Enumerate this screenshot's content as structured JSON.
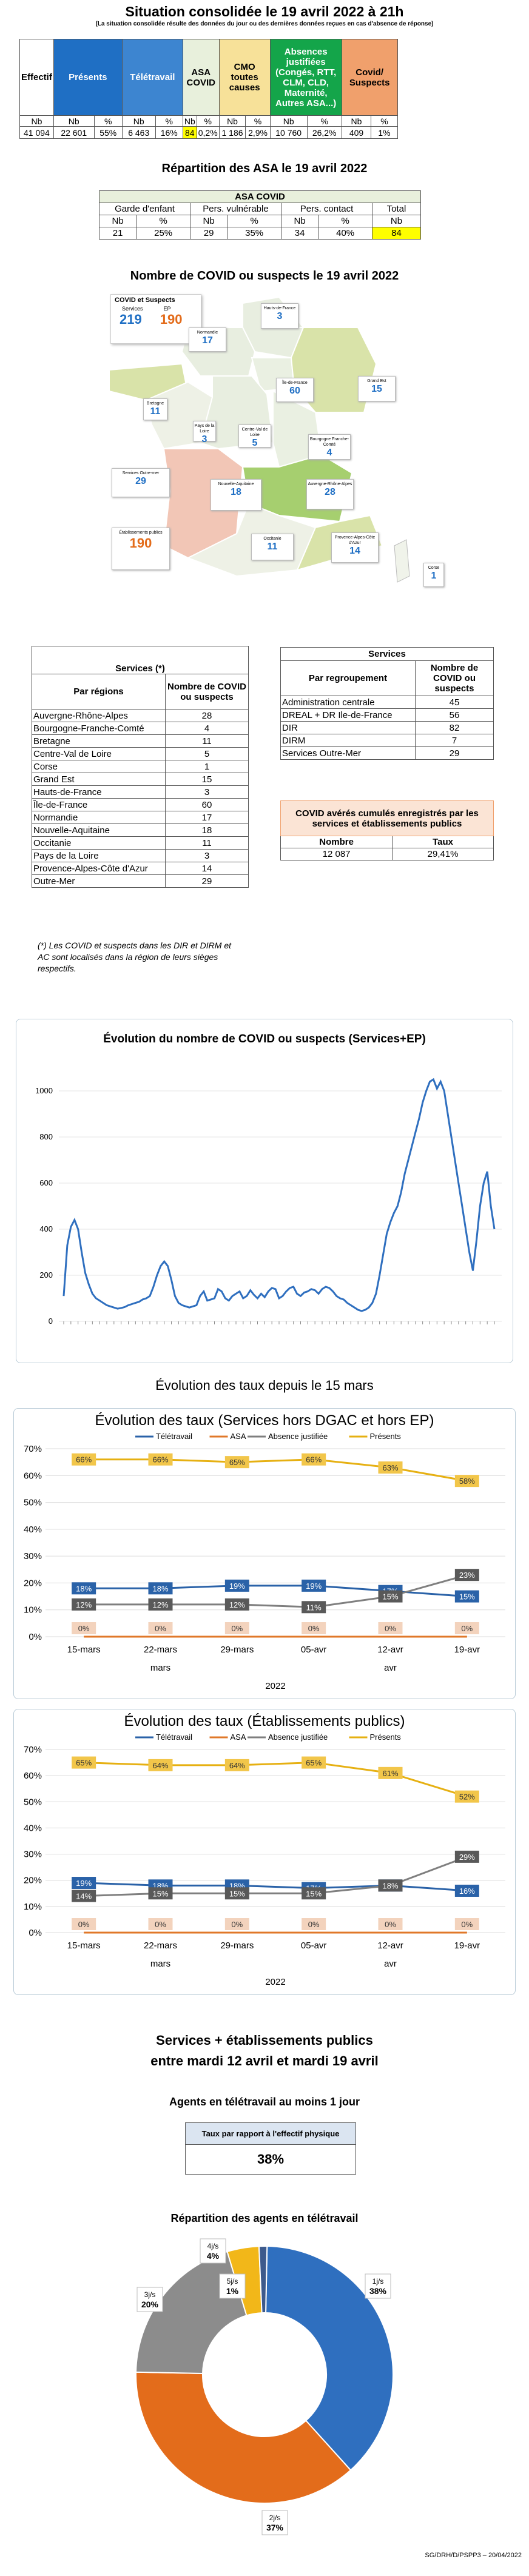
{
  "header": {
    "title": "Situation consolidée le 19 avril 2022 à 21h",
    "subtitle": "(La situation consolidée résulte des données du jour ou des dernières données reçues en cas d'absence de réponse)"
  },
  "situation": {
    "columns": [
      {
        "label": "Effectif",
        "color": "#ffffff",
        "text_color": "#000000",
        "sub": [
          "Nb"
        ],
        "vals": [
          "41 094"
        ]
      },
      {
        "label": "Présents",
        "color": "#1f6fc4",
        "text_color": "#ffffff",
        "sub": [
          "Nb",
          "%"
        ],
        "vals": [
          "22 601",
          "55%"
        ]
      },
      {
        "label": "Télétravail",
        "color": "#3d85d0",
        "text_color": "#ffffff",
        "sub": [
          "Nb",
          "%"
        ],
        "vals": [
          "6 463",
          "16%"
        ]
      },
      {
        "label": "ASA COVID",
        "color": "#e8f0dc",
        "text_color": "#000000",
        "sub": [
          "Nb",
          "%"
        ],
        "vals": [
          "84",
          "0,2%"
        ]
      },
      {
        "label": "CMO toutes causes",
        "color": "#f7e199",
        "text_color": "#000000",
        "sub": [
          "Nb",
          "%"
        ],
        "vals": [
          "1 186",
          "2,9%"
        ]
      },
      {
        "label": "Absences justifiées (Congés, RTT, CLM, CLD, Maternité, Autres ASA...)",
        "color": "#14a54a",
        "text_color": "#ffffff",
        "sub": [
          "Nb",
          "%"
        ],
        "vals": [
          "10 760",
          "26,2%"
        ]
      },
      {
        "label": "Covid/ Suspects",
        "color": "#f0a06c",
        "text_color": "#000000",
        "sub": [
          "Nb",
          "%"
        ],
        "vals": [
          "409",
          "1%"
        ]
      }
    ],
    "highlight_color": "#ffff00"
  },
  "asa": {
    "title": "Répartition des ASA le 19 avril 2022",
    "table_title": "ASA COVID",
    "groups": [
      "Garde d'enfant",
      "Pers. vulnérable",
      "Pers. contact",
      "Total"
    ],
    "sub": [
      "Nb",
      "%",
      "Nb",
      "%",
      "Nb",
      "%",
      "Nb"
    ],
    "vals": [
      "21",
      "25%",
      "29",
      "35%",
      "34",
      "40%",
      "84"
    ]
  },
  "map": {
    "title": "Nombre de COVID ou suspects le 19 avril 2022",
    "legend": {
      "title": "COVID et Suspects",
      "col1": "Services",
      "col2": "EP",
      "v1": "219",
      "v2": "190"
    },
    "regions": [
      {
        "name": "Hauts-de-France",
        "value": "3"
      },
      {
        "name": "Normandie",
        "value": "17"
      },
      {
        "name": "Île-de-France",
        "value": "60"
      },
      {
        "name": "Grand Est",
        "value": "15"
      },
      {
        "name": "Bretagne",
        "value": "11"
      },
      {
        "name": "Pays de la Loire",
        "value": "3"
      },
      {
        "name": "Centre-Val de Loire",
        "value": "5"
      },
      {
        "name": "Bourgogne Franche-Comté",
        "value": "4"
      },
      {
        "name": "Nouvelle-Aquitaine",
        "value": "18"
      },
      {
        "name": "Auvergne-Rhône-Alpes",
        "value": "28"
      },
      {
        "name": "Occitanie",
        "value": "11"
      },
      {
        "name": "Provence-Alpes-Côte d'Azur",
        "value": "14"
      },
      {
        "name": "Corse",
        "value": "1"
      },
      {
        "name": "Services Outre-mer",
        "value": "29"
      },
      {
        "name": "Établissements publics",
        "value": "190"
      }
    ]
  },
  "services_regions": {
    "title": "Services (*)",
    "col1": "Par régions",
    "col2": "Nombre de COVID ou suspects",
    "rows": [
      [
        "Auvergne-Rhône-Alpes",
        "28"
      ],
      [
        "Bourgogne-Franche-Comté",
        "4"
      ],
      [
        "Bretagne",
        "11"
      ],
      [
        "Centre-Val de Loire",
        "5"
      ],
      [
        "Corse",
        "1"
      ],
      [
        "Grand Est",
        "15"
      ],
      [
        "Hauts-de-France",
        "3"
      ],
      [
        "Île-de-France",
        "60"
      ],
      [
        "Normandie",
        "17"
      ],
      [
        "Nouvelle-Aquitaine",
        "18"
      ],
      [
        "Occitanie",
        "11"
      ],
      [
        "Pays de la Loire",
        "3"
      ],
      [
        "Provence-Alpes-Côte d'Azur",
        "14"
      ],
      [
        "Outre-Mer",
        "29"
      ]
    ],
    "note": "(*) Les COVID et suspects dans les DIR et DIRM et AC sont localisés dans la région de leurs sièges respectifs."
  },
  "services_groupement": {
    "title": "Services",
    "col1": "Par regroupement",
    "col2": "Nombre de COVID ou suspects",
    "rows": [
      [
        "Administration centrale",
        "45"
      ],
      [
        "DREAL + DR Ile-de-France",
        "56"
      ],
      [
        "DIR",
        "82"
      ],
      [
        "DIRM",
        "7"
      ],
      [
        "Services Outre-Mer",
        "29"
      ]
    ]
  },
  "cumul": {
    "title": "COVID avérés cumulés enregistrés par les services et établissements publics",
    "col1": "Nombre",
    "col2": "Taux",
    "v1": "12 087",
    "v2": "29,41%"
  },
  "evolution_chart": {
    "title": "Évolution du nombre de COVID ou suspects (Services+EP)",
    "yticks": [
      "0",
      "200",
      "400",
      "600",
      "800",
      "1000"
    ]
  },
  "section_taux": {
    "title": "Évolution des taux depuis le 15 mars"
  },
  "chart_data": [
    {
      "type": "line",
      "title": "Évolution du nombre de COVID ou suspects (Services+EP)",
      "ylim": [
        0,
        1100
      ],
      "values": [
        110,
        330,
        410,
        440,
        400,
        300,
        210,
        160,
        120,
        100,
        90,
        80,
        70,
        65,
        60,
        55,
        58,
        62,
        70,
        75,
        80,
        85,
        95,
        100,
        110,
        150,
        200,
        240,
        260,
        240,
        180,
        110,
        80,
        70,
        65,
        60,
        65,
        70,
        110,
        130,
        90,
        95,
        100,
        140,
        130,
        100,
        90,
        110,
        120,
        130,
        100,
        110,
        135,
        115,
        100,
        120,
        105,
        130,
        145,
        140,
        100,
        110,
        130,
        145,
        150,
        120,
        110,
        125,
        130,
        140,
        135,
        120,
        140,
        150,
        145,
        130,
        110,
        100,
        95,
        80,
        70,
        60,
        50,
        45,
        50,
        60,
        80,
        120,
        200,
        290,
        380,
        430,
        470,
        500,
        560,
        640,
        700,
        760,
        820,
        880,
        950,
        1000,
        1040,
        1050,
        1010,
        1040,
        1000,
        900,
        800,
        700,
        600,
        500,
        400,
        300,
        220,
        350,
        500,
        600,
        650,
        500,
        400
      ]
    },
    {
      "type": "line",
      "title": "Évolution des taux (Services hors DGAC et hors EP)",
      "categories": [
        "15-mars",
        "22-mars",
        "29-mars",
        "05-avr",
        "12-avr",
        "19-avr"
      ],
      "xgroups": [
        "mars",
        "avr"
      ],
      "xyear": "2022",
      "ylim": [
        0,
        70
      ],
      "series": [
        {
          "name": "Télétravail",
          "color": "#2a62a8",
          "values": [
            18,
            18,
            19,
            19,
            17,
            15
          ],
          "labels": [
            "18%",
            "18%",
            "19%",
            "19%",
            "17%",
            "15%"
          ]
        },
        {
          "name": "ASA",
          "color": "#e0782a",
          "values": [
            0,
            0,
            0,
            0,
            0,
            0
          ],
          "labels": [
            "0%",
            "0%",
            "0%",
            "0%",
            "0%",
            "0%"
          ]
        },
        {
          "name": "Absence justifiée",
          "color": "#7f7f7f",
          "values": [
            12,
            12,
            12,
            11,
            15,
            23
          ],
          "labels": [
            "12%",
            "12%",
            "12%",
            "11%",
            "15%",
            "23%"
          ]
        },
        {
          "name": "Présents",
          "color": "#e6b012",
          "values": [
            66,
            66,
            65,
            66,
            63,
            58
          ],
          "labels": [
            "66%",
            "66%",
            "65%",
            "66%",
            "63%",
            "58%"
          ]
        }
      ]
    },
    {
      "type": "line",
      "title": "Évolution des taux (Établissements publics)",
      "categories": [
        "15-mars",
        "22-mars",
        "29-mars",
        "05-avr",
        "12-avr",
        "19-avr"
      ],
      "xgroups": [
        "mars",
        "avr"
      ],
      "xyear": "2022",
      "ylim": [
        0,
        70
      ],
      "series": [
        {
          "name": "Télétravail",
          "color": "#2a62a8",
          "values": [
            19,
            18,
            18,
            17,
            18,
            16
          ],
          "labels": [
            "19%",
            "18%",
            "18%",
            "17%",
            "18%",
            "16%"
          ]
        },
        {
          "name": "ASA",
          "color": "#e0782a",
          "values": [
            0,
            0,
            0,
            0,
            0,
            0
          ],
          "labels": [
            "0%",
            "0%",
            "0%",
            "0%",
            "0%",
            "0%"
          ]
        },
        {
          "name": "Absence justifiée",
          "color": "#7f7f7f",
          "values": [
            14,
            15,
            15,
            15,
            18,
            29
          ],
          "labels": [
            "14%",
            "15%",
            "15%",
            "15%",
            "18%",
            "29%"
          ]
        },
        {
          "name": "Présents",
          "color": "#e6b012",
          "values": [
            65,
            64,
            64,
            65,
            61,
            52
          ],
          "labels": [
            "65%",
            "64%",
            "64%",
            "65%",
            "61%",
            "52%"
          ]
        }
      ]
    },
    {
      "type": "pie",
      "title": "Répartition des agents en télétravail",
      "slices": [
        {
          "label": "1j/s",
          "pct": "38%",
          "value": 38,
          "color": "#2f6fbf"
        },
        {
          "label": "2j/s",
          "pct": "37%",
          "value": 37,
          "color": "#e36c1b"
        },
        {
          "label": "3j/s",
          "pct": "20%",
          "value": 20,
          "color": "#8c8c8c"
        },
        {
          "label": "4j/s",
          "pct": "4%",
          "value": 4,
          "color": "#f2b719"
        },
        {
          "label": "5j/s",
          "pct": "1%",
          "value": 1,
          "color": "#3d5a8c"
        }
      ]
    }
  ],
  "telework": {
    "title_line1": "Services + établissements publics",
    "title_line2": "entre mardi 12 avril et mardi 19 avril",
    "subtitle": "Agents en télétravail au moins 1 jour",
    "rate_label": "Taux par rapport à l'effectif physique",
    "rate_value": "38%",
    "pie_title": "Répartition des agents en télétravail"
  },
  "footer": "SG/DRH/D/PSPP3 – 20/04/2022"
}
